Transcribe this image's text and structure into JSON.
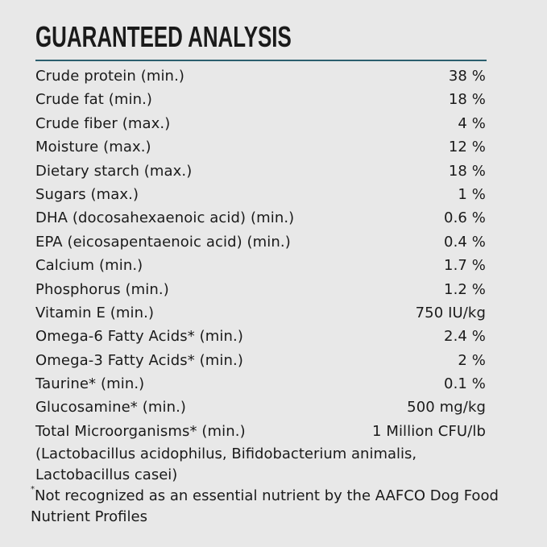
{
  "title": "GUARANTEED ANALYSIS",
  "rule_color": "#2c5f6e",
  "rows": [
    {
      "label": "Crude protein (min.)",
      "value": "38 %"
    },
    {
      "label": "Crude fat (min.)",
      "value": "18 %"
    },
    {
      "label": "Crude fiber (max.)",
      "value": "4 %"
    },
    {
      "label": "Moisture (max.)",
      "value": "12 %"
    },
    {
      "label": "Dietary starch (max.)",
      "value": "18 %"
    },
    {
      "label": "Sugars (max.)",
      "value": "1 %"
    },
    {
      "label": "DHA (docosahexaenoic acid) (min.)",
      "value": "0.6 %"
    },
    {
      "label": "EPA (eicosapentaenoic acid) (min.)",
      "value": "0.4 %"
    },
    {
      "label": "Calcium (min.)",
      "value": "1.7 %"
    },
    {
      "label": "Phosphorus (min.)",
      "value": "1.2 %"
    },
    {
      "label": "Vitamin E (min.)",
      "value": "750 IU/kg"
    },
    {
      "label": "Omega-6 Fatty Acids* (min.)",
      "value": "2.4 %"
    },
    {
      "label": "Omega-3 Fatty Acids* (min.)",
      "value": "2 %"
    },
    {
      "label": "Taurine* (min.)",
      "value": "0.1 %"
    },
    {
      "label": "Glucosamine* (min.)",
      "value": "500 mg/kg"
    },
    {
      "label": "Total Microorganisms* (min.)",
      "value": "1 Million CFU/lb"
    }
  ],
  "microorganisms_note": "(Lactobacillus acidophilus, Bifidobacterium animalis, Lactobacillus casei)",
  "footnote": {
    "marker": "*",
    "text": "Not recognized as an essential nutrient by the AAFCO Dog Food Nutrient Profiles"
  }
}
